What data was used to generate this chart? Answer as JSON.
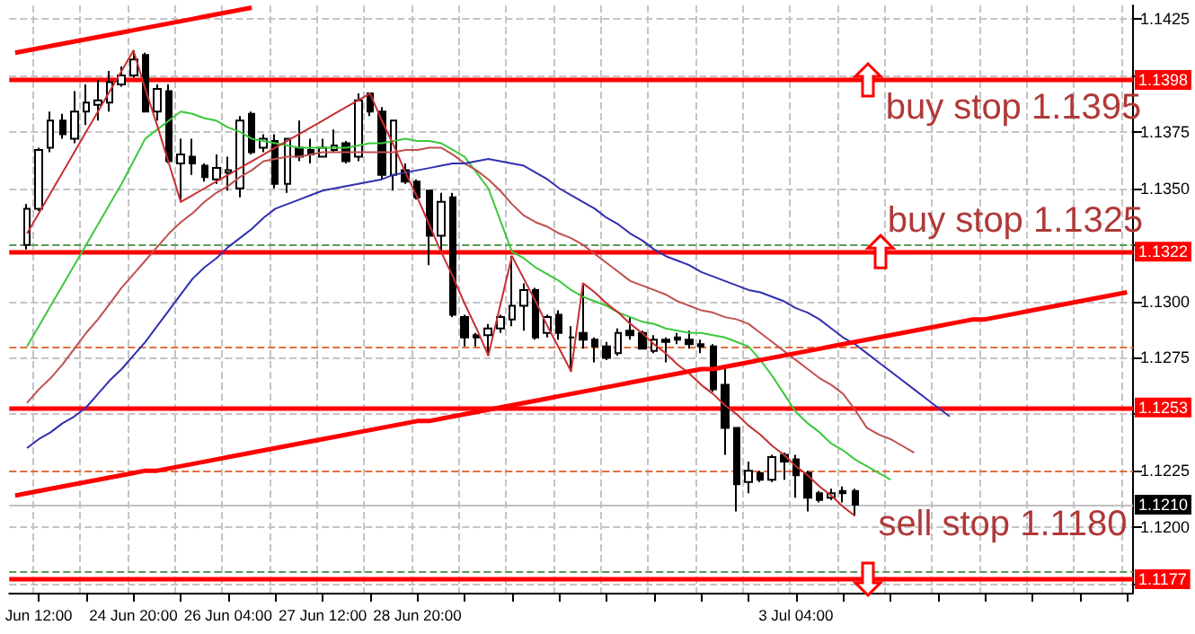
{
  "chart_data": {
    "type": "candlestick",
    "categories": [
      null,
      null,
      "Jun 12:00",
      null,
      null,
      null,
      null,
      null,
      null,
      null,
      "24 Jun 20:00",
      null,
      null,
      null,
      null,
      null,
      null,
      null,
      "26 Jun 04:00",
      null,
      null,
      null,
      null,
      null,
      null,
      null,
      "27 Jun 12:00",
      null,
      null,
      null,
      null,
      null,
      null,
      null,
      "28 Jun 20:00",
      null,
      null,
      null,
      null,
      null,
      null,
      null,
      null,
      null,
      null,
      null,
      null,
      null,
      null,
      null,
      null,
      null,
      null,
      null,
      null,
      null,
      null,
      null,
      null,
      null,
      null,
      null,
      null,
      null,
      null,
      null,
      "3 Jul 04:00",
      null,
      null,
      null,
      null,
      null,
      null,
      null,
      null,
      null,
      null,
      null,
      null,
      null,
      null,
      null,
      null,
      null,
      null,
      null,
      null,
      null,
      null,
      null,
      null,
      null,
      null,
      null,
      null
    ],
    "ylim": [
      1.1171,
      1.1431
    ],
    "yticks": [
      {
        "value": 1.1175,
        "label": null
      },
      {
        "value": 1.12,
        "label": "1.1200"
      },
      {
        "value": 1.1225,
        "label": "1.1225"
      },
      {
        "value": 1.125,
        "label": null
      },
      {
        "value": 1.1275,
        "label": "1.1275"
      },
      {
        "value": 1.13,
        "label": "1.1300"
      },
      {
        "value": 1.1325,
        "label": null
      },
      {
        "value": 1.135,
        "label": "1.1350"
      },
      {
        "value": 1.1375,
        "label": "1.1375"
      },
      {
        "value": 1.14,
        "label": null
      },
      {
        "value": 1.1425,
        "label": "1.1425"
      }
    ],
    "grid": true,
    "series": [
      {
        "type": "line",
        "color": "#3cc83c",
        "values": [
          null,
          1.128,
          1.1289,
          1.1298,
          1.1307,
          1.1316,
          1.1325,
          1.1334,
          1.1343,
          1.1352,
          1.1362,
          1.1372,
          1.1376,
          1.138,
          1.1384,
          1.1383,
          1.1381,
          1.138,
          1.1377,
          1.1375,
          1.1372,
          1.1371,
          1.137,
          1.1369,
          1.1368,
          1.1368,
          1.1368,
          1.1368,
          1.1368,
          1.1369,
          1.137,
          1.137,
          1.1371,
          1.1372,
          1.1371,
          1.1371,
          1.137,
          1.1367,
          1.1364,
          1.1357,
          1.135,
          1.1336,
          1.1322,
          1.1319,
          1.1315,
          1.1312,
          1.1309,
          1.1305,
          1.1302,
          1.13,
          1.1298,
          1.1295,
          1.1293,
          1.1291,
          1.129,
          1.1288,
          1.1287,
          1.1286,
          1.1286,
          1.1285,
          1.1284,
          1.1282,
          1.128,
          1.1274,
          1.1267,
          1.1259,
          1.1251,
          1.1246,
          1.1242,
          1.1237,
          1.1234,
          1.123,
          1.1227,
          1.1224,
          1.1221,
          null,
          null,
          null,
          null,
          null,
          null,
          null,
          null,
          null,
          null,
          null,
          null,
          null,
          null,
          null,
          null,
          null,
          null,
          null,
          null
        ]
      },
      {
        "type": "line",
        "color": "#c05050",
        "values": [
          null,
          1.1255,
          1.1261,
          1.1266,
          1.1272,
          1.1279,
          1.1286,
          1.1292,
          1.1299,
          1.1306,
          1.1312,
          1.1318,
          1.1324,
          1.133,
          1.1335,
          1.1339,
          1.1344,
          1.1348,
          1.1351,
          1.1355,
          1.1358,
          1.1362,
          1.1363,
          1.1364,
          1.1364,
          1.1365,
          1.1366,
          1.1366,
          1.1366,
          1.1366,
          1.1366,
          1.1366,
          1.1366,
          1.1367,
          1.1367,
          1.1368,
          1.1368,
          1.1365,
          1.1361,
          1.1358,
          1.1354,
          1.1349,
          1.1343,
          1.1338,
          1.1335,
          1.1333,
          1.133,
          1.1328,
          1.1325,
          1.1321,
          1.1317,
          1.1313,
          1.1309,
          1.1307,
          1.1305,
          1.1303,
          1.13,
          1.1298,
          1.1296,
          1.1295,
          1.1293,
          1.1292,
          1.129,
          1.1286,
          1.1282,
          1.1278,
          1.1274,
          1.127,
          1.1266,
          1.1263,
          1.1259,
          1.1252,
          1.1244,
          1.1241,
          1.1239,
          1.1236,
          1.1233,
          null,
          null,
          null,
          null,
          null,
          null,
          null,
          null,
          null,
          null,
          null,
          null,
          null,
          null,
          null,
          null,
          null,
          null
        ]
      },
      {
        "type": "line",
        "color": "#3030b0",
        "values": [
          null,
          1.1235,
          1.1239,
          1.1242,
          1.1246,
          1.1249,
          1.1253,
          1.1259,
          1.1265,
          1.127,
          1.1276,
          1.1282,
          1.1289,
          1.1296,
          1.1303,
          1.131,
          1.1315,
          1.1319,
          1.1324,
          1.1328,
          1.1332,
          1.1337,
          1.1341,
          1.1343,
          1.1345,
          1.1347,
          1.1349,
          1.135,
          1.1351,
          1.1352,
          1.1353,
          1.1354,
          1.1356,
          1.1357,
          1.1358,
          1.1359,
          1.136,
          1.1361,
          1.1361,
          1.1362,
          1.1363,
          1.1362,
          1.1361,
          1.136,
          1.1357,
          1.1354,
          1.135,
          1.1347,
          1.1344,
          1.1341,
          1.1337,
          1.1334,
          1.133,
          1.1327,
          1.1323,
          1.132,
          1.1318,
          1.1316,
          1.1313,
          1.1311,
          1.1309,
          1.1307,
          1.1305,
          1.1304,
          1.1302,
          1.13,
          1.1297,
          1.1295,
          1.1292,
          1.1288,
          1.1284,
          1.1281,
          1.1277,
          1.1273,
          1.1269,
          1.1265,
          1.1261,
          1.1257,
          1.1253,
          1.1249,
          null,
          null,
          null,
          null,
          null,
          null,
          null,
          null,
          null,
          null,
          null,
          null,
          null,
          null,
          null
        ]
      },
      {
        "type": "line",
        "color": "#c83030",
        "values": [
          null,
          1.133,
          1.1339,
          1.1348,
          1.1357,
          1.1366,
          1.1375,
          1.1384,
          1.1393,
          1.1402,
          1.1411,
          1.1394,
          1.1378,
          1.1361,
          1.1344,
          1.1347,
          1.135,
          1.1353,
          1.1356,
          1.1359,
          1.1362,
          1.1365,
          1.1368,
          1.1371,
          1.1374,
          1.1377,
          1.138,
          1.1383,
          1.1386,
          1.1389,
          1.1392,
          1.138,
          1.1369,
          1.1357,
          1.1346,
          1.1334,
          1.1322,
          1.1311,
          1.1299,
          1.1288,
          1.1276,
          1.1298,
          1.132,
          1.131,
          1.13,
          1.1289,
          1.1279,
          1.1269,
          1.1308,
          1.1304,
          1.1299,
          1.1295,
          1.129,
          1.1286,
          1.1281,
          1.1277,
          1.1272,
          1.1268,
          1.1263,
          1.1259,
          1.1254,
          1.125,
          1.1245,
          1.1241,
          1.1236,
          1.1232,
          1.1227,
          1.1223,
          1.1218,
          1.1214,
          1.1209,
          1.1205,
          null,
          null,
          null,
          null,
          null,
          null,
          null,
          null,
          null,
          null,
          null,
          null,
          null,
          null,
          null,
          null,
          null,
          null,
          null,
          null,
          null,
          null,
          null
        ]
      },
      {
        "type": "line",
        "color": "#ff0000",
        "values": [
          1.1214,
          1.1215,
          1.1216,
          1.1217,
          1.1218,
          1.1219,
          1.122,
          1.1221,
          1.1222,
          1.1223,
          1.1224,
          1.1225,
          1.1225,
          1.1226,
          1.1227,
          1.1228,
          1.1229,
          1.123,
          1.1231,
          1.1232,
          1.1233,
          1.1234,
          1.1235,
          1.1236,
          1.1237,
          1.1238,
          1.1239,
          1.124,
          1.1241,
          1.1242,
          1.1243,
          1.1244,
          1.1245,
          1.1246,
          1.1247,
          1.1247,
          1.1248,
          1.1249,
          1.125,
          1.1251,
          1.1252,
          1.1253,
          1.1254,
          1.1255,
          1.1256,
          1.1257,
          1.1258,
          1.1259,
          1.126,
          1.1261,
          1.1262,
          1.1263,
          1.1264,
          1.1265,
          1.1266,
          1.1267,
          1.1268,
          1.1269,
          1.127,
          1.127,
          1.1271,
          1.1272,
          1.1273,
          1.1274,
          1.1275,
          1.1276,
          1.1277,
          1.1278,
          1.1279,
          1.128,
          1.1281,
          1.1282,
          1.1283,
          1.1284,
          1.1285,
          1.1286,
          1.1287,
          1.1288,
          1.1289,
          1.129,
          1.1291,
          1.1292,
          1.1292,
          1.1293,
          1.1294,
          1.1295,
          1.1296,
          1.1297,
          1.1298,
          1.1299,
          1.13,
          1.1301,
          1.1302,
          1.1303,
          1.1304
        ]
      },
      {
        "type": "line",
        "color": "#ff0000",
        "values": [
          1.141,
          1.1411,
          1.1412,
          1.1413,
          1.1414,
          1.1415,
          1.1416,
          1.1417,
          1.1418,
          1.1419,
          1.142,
          1.1421,
          1.1422,
          1.1423,
          1.1424,
          1.1425,
          1.1426,
          1.1427,
          1.1428,
          1.1429,
          1.143,
          null,
          null,
          null,
          null,
          null,
          null,
          null,
          null,
          null,
          null,
          null,
          null,
          null,
          null,
          null,
          null,
          null,
          null,
          null,
          null,
          null,
          null,
          null,
          null,
          null,
          null,
          null,
          null,
          null,
          null,
          null,
          null,
          null,
          null,
          null,
          null,
          null,
          null,
          null,
          null,
          null,
          null,
          null,
          null,
          null,
          null,
          null,
          null,
          null,
          null,
          null,
          null,
          null,
          null,
          null,
          null,
          null,
          null,
          null,
          null,
          null,
          null,
          null,
          null,
          null,
          null,
          null,
          null,
          null,
          null,
          null,
          null,
          null,
          null
        ]
      },
      {
        "color": "#000000",
        "ohlc": [
          null,
          [
            1.1325,
            1.1343,
            1.1323,
            1.1341
          ],
          [
            1.1341,
            1.1368,
            1.134,
            1.1367
          ],
          [
            1.1368,
            1.1384,
            1.1366,
            1.138
          ],
          [
            1.138,
            1.1383,
            1.1372,
            1.1374
          ],
          [
            1.1372,
            1.1393,
            1.137,
            1.1384
          ],
          [
            1.1384,
            1.1396,
            1.1378,
            1.1388
          ],
          [
            1.1387,
            1.1398,
            1.138,
            1.1389
          ],
          [
            1.1388,
            1.1402,
            1.1384,
            1.1397
          ],
          [
            1.1396,
            1.1404,
            1.1395,
            1.14
          ],
          [
            1.14,
            1.1411,
            1.1399,
            1.1407
          ],
          [
            1.1409,
            1.141,
            1.1384,
            1.1384
          ],
          [
            1.1384,
            1.1396,
            1.138,
            1.1394
          ],
          [
            1.1393,
            1.1396,
            1.1361,
            1.1362
          ],
          [
            1.1361,
            1.1372,
            1.1344,
            1.1365
          ],
          [
            1.1364,
            1.1372,
            1.1356,
            1.1361
          ],
          [
            1.136,
            1.1361,
            1.1353,
            1.1355
          ],
          [
            1.1354,
            1.1365,
            1.1352,
            1.1359
          ],
          [
            1.1357,
            1.1364,
            1.1349,
            1.1358
          ],
          [
            1.135,
            1.1382,
            1.1346,
            1.138
          ],
          [
            1.1383,
            1.1384,
            1.1365,
            1.1366
          ],
          [
            1.1368,
            1.1374,
            1.1366,
            1.1372
          ],
          [
            1.1371,
            1.1374,
            1.135,
            1.1352
          ],
          [
            1.1352,
            1.1372,
            1.1348,
            1.1372
          ],
          [
            1.1368,
            1.138,
            1.1362,
            1.1364
          ],
          [
            1.1367,
            1.1372,
            1.1361,
            1.1365
          ],
          [
            1.1364,
            1.1372,
            1.1364,
            1.1368
          ],
          [
            1.1367,
            1.1376,
            1.1366,
            1.1369
          ],
          [
            1.137,
            1.1371,
            1.1361,
            1.1362
          ],
          [
            1.1364,
            1.1392,
            1.1362,
            1.1389
          ],
          [
            1.1392,
            1.1392,
            1.1382,
            1.1384
          ],
          [
            1.1384,
            1.1386,
            1.1354,
            1.1356
          ],
          [
            1.1356,
            1.138,
            1.1349,
            1.138
          ],
          [
            1.1358,
            1.1361,
            1.1352,
            1.1353
          ],
          [
            1.1353,
            1.1354,
            1.1345,
            1.1346
          ],
          [
            1.1349,
            1.1349,
            1.1316,
            1.1329
          ],
          [
            1.1329,
            1.1348,
            1.1322,
            1.1344
          ],
          [
            1.1346,
            1.1348,
            1.1293,
            1.1294
          ],
          [
            1.1293,
            1.1294,
            1.128,
            1.1284
          ],
          [
            1.1285,
            1.1286,
            1.128,
            1.1284
          ],
          [
            1.1285,
            1.129,
            1.1276,
            1.1288
          ],
          [
            1.1288,
            1.1294,
            1.1286,
            1.1293
          ],
          [
            1.1292,
            1.132,
            1.1289,
            1.1298
          ],
          [
            1.1298,
            1.1308,
            1.1287,
            1.1305
          ],
          [
            1.1305,
            1.1306,
            1.1283,
            1.1284
          ],
          [
            1.1286,
            1.1294,
            1.1284,
            1.1293
          ],
          [
            1.1294,
            1.1296,
            1.1283,
            1.1286
          ],
          [
            1.1284,
            1.1289,
            1.1269,
            1.1284
          ],
          [
            1.1286,
            1.1308,
            1.1279,
            1.1283
          ],
          [
            1.1283,
            1.1284,
            1.1273,
            1.128
          ],
          [
            1.128,
            1.1282,
            1.1274,
            1.1275
          ],
          [
            1.1277,
            1.1288,
            1.1276,
            1.1286
          ],
          [
            1.1287,
            1.1293,
            1.1283,
            1.1285
          ],
          [
            1.1286,
            1.1287,
            1.1279,
            1.1279
          ],
          [
            1.1278,
            1.1285,
            1.1277,
            1.1283
          ],
          [
            1.1283,
            1.1284,
            1.1273,
            1.1282
          ],
          [
            1.1284,
            1.1286,
            1.1281,
            1.1283
          ],
          [
            1.1283,
            1.1287,
            1.1279,
            1.1281
          ],
          [
            1.1281,
            1.1283,
            1.1277,
            1.128
          ],
          [
            1.128,
            1.1281,
            1.126,
            1.1261
          ],
          [
            1.1263,
            1.1271,
            1.1232,
            1.1244
          ],
          [
            1.1244,
            1.1244,
            1.1207,
            1.1219
          ],
          [
            1.122,
            1.1229,
            1.1215,
            1.1225
          ],
          [
            1.1224,
            1.1225,
            1.122,
            1.1221
          ],
          [
            1.1221,
            1.1232,
            1.122,
            1.1231
          ],
          [
            1.1232,
            1.1233,
            1.1221,
            1.1229
          ],
          [
            1.123,
            1.1232,
            1.1213,
            1.1223
          ],
          [
            1.1224,
            1.1225,
            1.1207,
            1.1213
          ],
          [
            1.1215,
            1.1216,
            1.1211,
            1.1212
          ],
          [
            1.1213,
            1.1217,
            1.1212,
            1.1215
          ],
          [
            1.1216,
            1.1218,
            1.1211,
            1.1215
          ],
          [
            1.1216,
            1.1217,
            1.1205,
            1.121
          ],
          null,
          null,
          null,
          null,
          null,
          null,
          null,
          null,
          null,
          null,
          null,
          null,
          null,
          null,
          null,
          null,
          null,
          null,
          null,
          null,
          null,
          null,
          null
        ]
      }
    ],
    "ref_lines": [
      {
        "axis": "y",
        "value": 1.1398,
        "label": "1.1398",
        "color": "#ff0000",
        "line_style": "solid"
      },
      {
        "axis": "y",
        "value": 1.1322,
        "label": "1.1322",
        "color": "#ff0000",
        "line_style": "solid"
      },
      {
        "axis": "y",
        "value": 1.1253,
        "label": "1.1253",
        "color": "#ff0000",
        "line_style": "solid"
      },
      {
        "axis": "y",
        "value": 1.1177,
        "label": "1.1177",
        "color": "#ff0000",
        "line_style": "solid"
      },
      {
        "axis": "y",
        "value": 1.121,
        "label": "1.1210",
        "color": "#c0c0c0",
        "line_style": "solid"
      },
      {
        "axis": "y",
        "value": 1.1325,
        "color": "#5a9a5a",
        "line_style": "dashed"
      },
      {
        "axis": "y",
        "value": 1.118,
        "color": "#5a9a5a",
        "line_style": "dashed"
      },
      {
        "axis": "y",
        "value": 1.128,
        "color": "#e07040",
        "line_style": "dashed"
      },
      {
        "axis": "y",
        "value": 1.1225,
        "color": "#e07040",
        "line_style": "dashed"
      }
    ],
    "annotations": [
      "buy stop 1.1395",
      "buy stop 1.1325",
      "sell stop 1.1180"
    ]
  }
}
